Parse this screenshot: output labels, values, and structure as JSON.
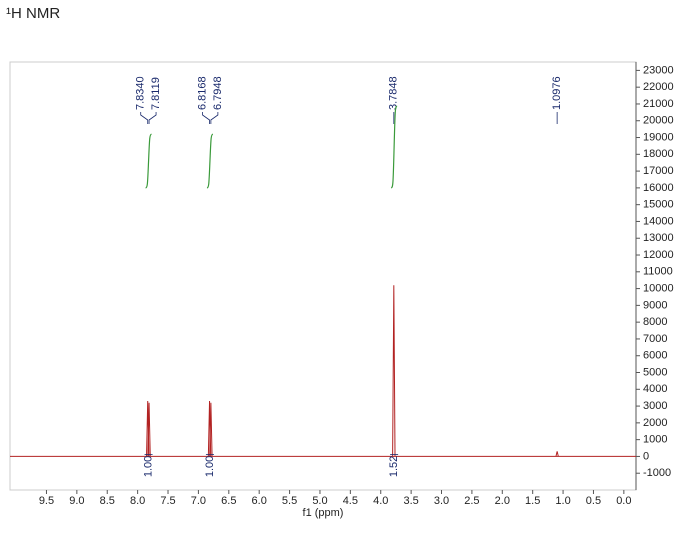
{
  "chart_data": {
    "type": "nmr",
    "title": "¹H NMR",
    "xlabel": "f1 (ppm)",
    "xlim": [
      10.1,
      -0.2
    ],
    "ylim": [
      -2000,
      23500
    ],
    "xticks": [
      {
        "value": 9.5,
        "label": "9.5"
      },
      {
        "value": 9,
        "label": "9.0"
      },
      {
        "value": 8.5,
        "label": "8.5"
      },
      {
        "value": 8,
        "label": "8.0"
      },
      {
        "value": 7.5,
        "label": "7.5"
      },
      {
        "value": 7,
        "label": "7.0"
      },
      {
        "value": 6.5,
        "label": "6.5"
      },
      {
        "value": 6,
        "label": "6.0"
      },
      {
        "value": 5.5,
        "label": "5.5"
      },
      {
        "value": 5,
        "label": "5.0"
      },
      {
        "value": 4.5,
        "label": "4.5"
      },
      {
        "value": 4,
        "label": "4.0"
      },
      {
        "value": 3.5,
        "label": "3.5"
      },
      {
        "value": 3,
        "label": "3.0"
      },
      {
        "value": 2.5,
        "label": "2.5"
      },
      {
        "value": 2,
        "label": "2.0"
      },
      {
        "value": 1.5,
        "label": "1.5"
      },
      {
        "value": 1,
        "label": "1.0"
      },
      {
        "value": 0.5,
        "label": "0.5"
      },
      {
        "value": 0,
        "label": "0.0"
      }
    ],
    "yticks": [
      -1000,
      0,
      1000,
      2000,
      3000,
      4000,
      5000,
      6000,
      7000,
      8000,
      9000,
      10000,
      11000,
      12000,
      13000,
      14000,
      15000,
      16000,
      17000,
      18000,
      19000,
      20000,
      21000,
      22000,
      23000
    ],
    "series": [
      {
        "color": "#b22222",
        "x": [
          7.834,
          7.8119,
          6.8168,
          6.7948,
          3.7848,
          1.0976
        ],
        "x_labels": [
          "7.8340",
          "7.8119",
          "6.8168",
          "6.7948",
          "3.7848",
          "1.0976"
        ],
        "values": [
          3300,
          3200,
          3300,
          3200,
          10200,
          300
        ]
      }
    ],
    "integrals": {
      "color": "#3a9a3a",
      "x": [
        7.82,
        6.81,
        3.78
      ],
      "values": [
        1,
        1,
        1.52
      ],
      "value_labels": [
        "1.00",
        "1.00",
        "1.52"
      ]
    }
  }
}
